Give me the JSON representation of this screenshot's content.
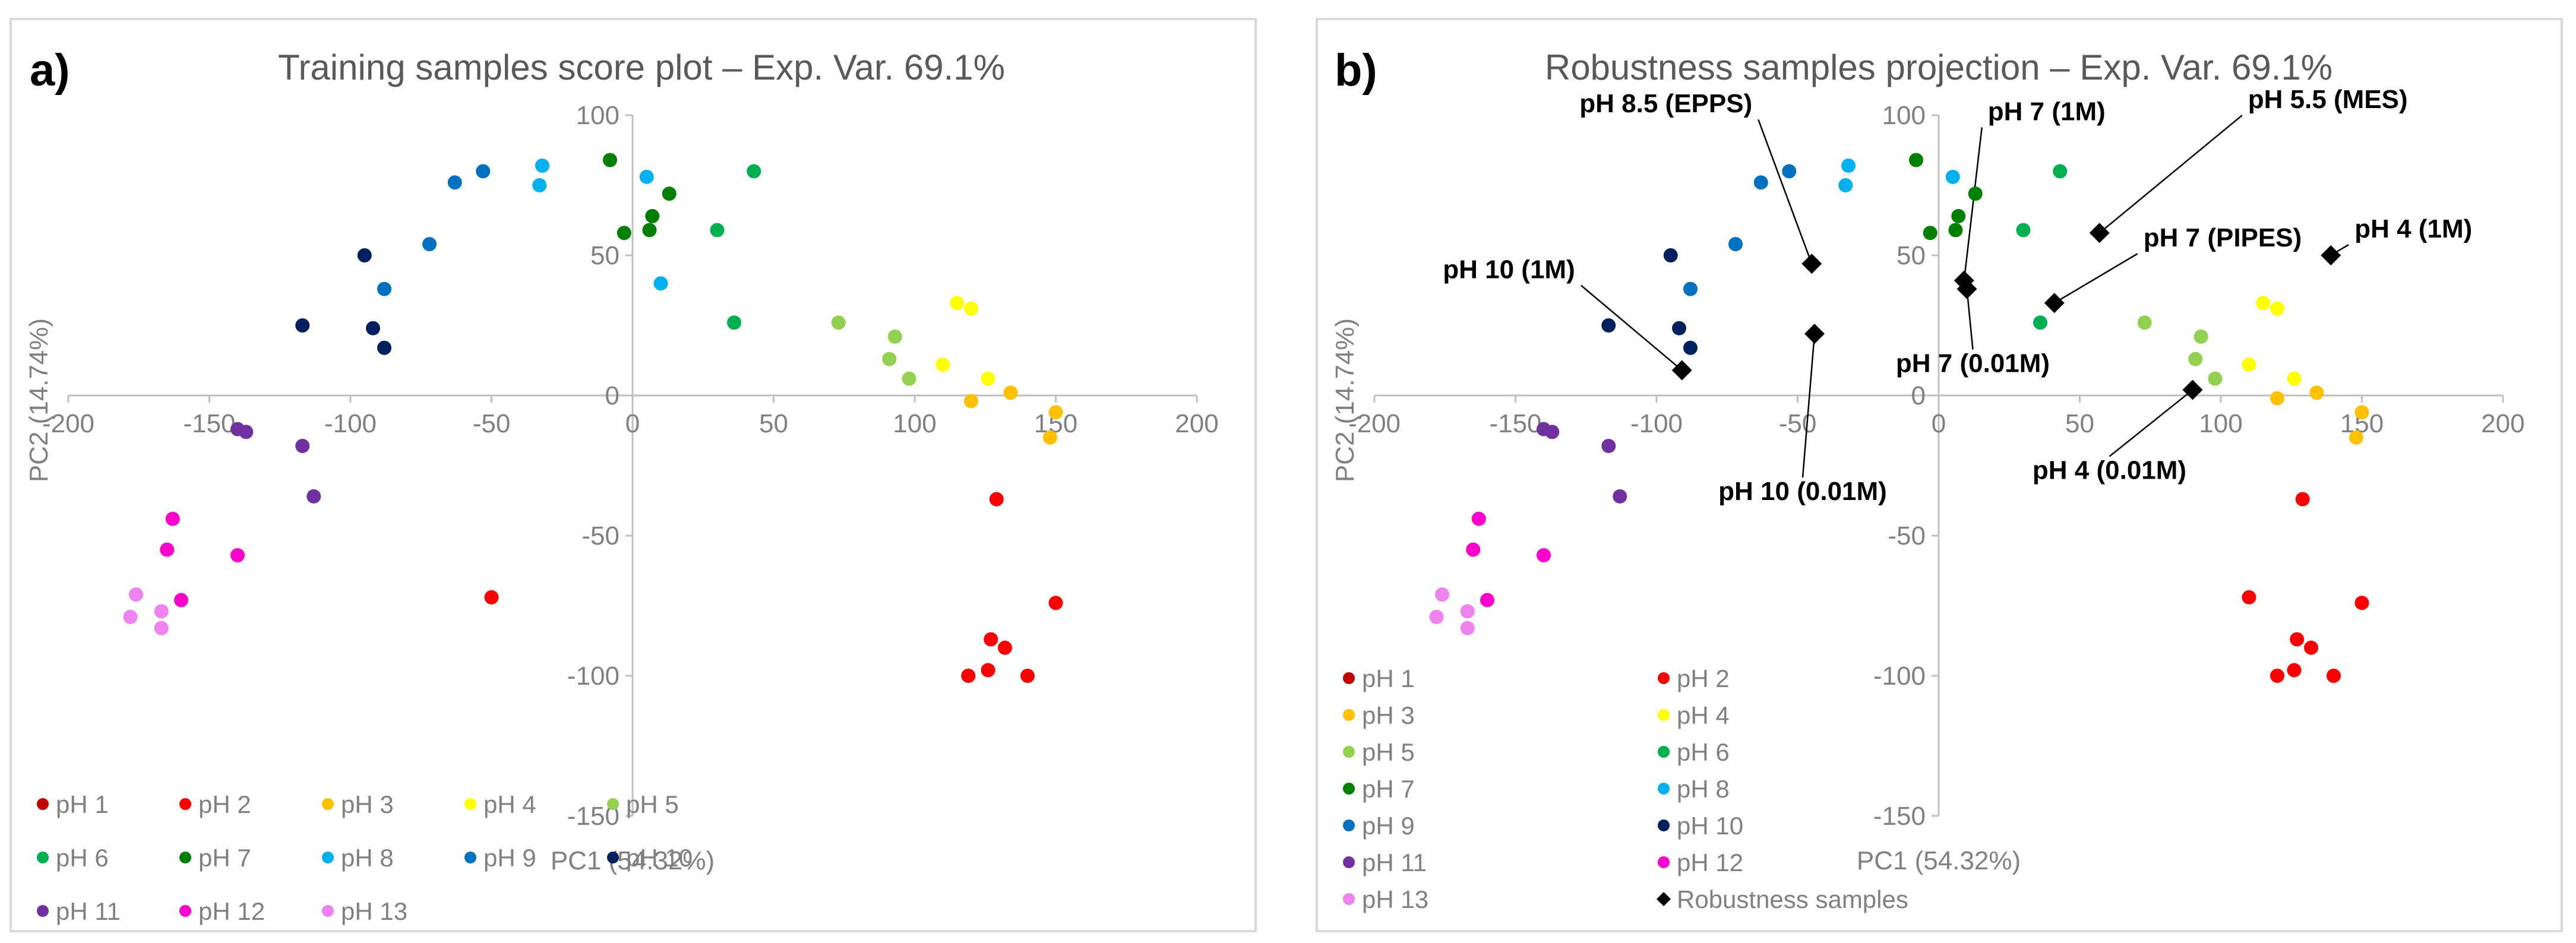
{
  "chart_data": [
    {
      "panel_label": "a)",
      "type": "scatter",
      "title": "Training samples score plot – Exp. Var. 69.1%",
      "xlabel": "PC1 (54.32%)",
      "ylabel": "PC2 (14.74%)",
      "xlim": [
        -200,
        200
      ],
      "ylim": [
        -150,
        100
      ],
      "x_ticks": [
        -200,
        -150,
        -100,
        -50,
        0,
        50,
        100,
        150,
        200
      ],
      "y_ticks": [
        -150,
        -100,
        -50,
        0,
        50,
        100
      ],
      "legend_position": "bottom-left",
      "series": [
        {
          "name": "pH 1",
          "color": "#c00000",
          "points": []
        },
        {
          "name": "pH 2",
          "color": "#ff0000",
          "points": [
            [
              -50,
              -72
            ],
            [
              119,
              -100
            ],
            [
              126,
              -98
            ],
            [
              127,
              -87
            ],
            [
              132,
              -90
            ],
            [
              140,
              -100
            ],
            [
              150,
              -74
            ],
            [
              129,
              -37
            ]
          ]
        },
        {
          "name": "pH 3",
          "color": "#ffc000",
          "points": [
            [
              120,
              -2
            ],
            [
              134,
              1
            ],
            [
              148,
              -15
            ],
            [
              150,
              -6
            ]
          ]
        },
        {
          "name": "pH 4",
          "color": "#ffff00",
          "points": [
            [
              115,
              33
            ],
            [
              120,
              31
            ],
            [
              110,
              11
            ],
            [
              126,
              6
            ]
          ]
        },
        {
          "name": "pH 5",
          "color": "#92d050",
          "points": [
            [
              73,
              26
            ],
            [
              93,
              21
            ],
            [
              91,
              13
            ],
            [
              98,
              6
            ]
          ]
        },
        {
          "name": "pH 6",
          "color": "#00b050",
          "points": [
            [
              43,
              80
            ],
            [
              30,
              59
            ],
            [
              36,
              26
            ]
          ]
        },
        {
          "name": "pH 7",
          "color": "#008000",
          "points": [
            [
              -8,
              84
            ],
            [
              -3,
              58
            ],
            [
              6,
              59
            ],
            [
              7,
              64
            ],
            [
              13,
              72
            ]
          ]
        },
        {
          "name": "pH 8",
          "color": "#00b0f0",
          "points": [
            [
              -32,
              82
            ],
            [
              -33,
              75
            ],
            [
              5,
              78
            ],
            [
              10,
              40
            ]
          ]
        },
        {
          "name": "pH 9",
          "color": "#0070c0",
          "points": [
            [
              -63,
              76
            ],
            [
              -53,
              80
            ],
            [
              -72,
              54
            ],
            [
              -88,
              38
            ]
          ]
        },
        {
          "name": "pH 10",
          "color": "#002060",
          "points": [
            [
              -95,
              50
            ],
            [
              -117,
              25
            ],
            [
              -92,
              24
            ],
            [
              -88,
              17
            ]
          ]
        },
        {
          "name": "pH 11",
          "color": "#7030a0",
          "points": [
            [
              -140,
              -12
            ],
            [
              -137,
              -13
            ],
            [
              -117,
              -18
            ],
            [
              -113,
              -36
            ]
          ]
        },
        {
          "name": "pH 12",
          "color": "#ff00cc",
          "points": [
            [
              -163,
              -44
            ],
            [
              -165,
              -55
            ],
            [
              -160,
              -73
            ],
            [
              -140,
              -57
            ]
          ]
        },
        {
          "name": "pH 13",
          "color": "#ee82ee",
          "points": [
            [
              -176,
              -71
            ],
            [
              -178,
              -79
            ],
            [
              -167,
              -77
            ],
            [
              -167,
              -83
            ]
          ]
        }
      ],
      "legend_rows": [
        [
          "pH 1",
          "pH 2",
          "pH 3",
          "pH 4",
          "pH 5"
        ],
        [
          "pH 6",
          "pH 7",
          "pH 8",
          "pH 9",
          "pH 10"
        ],
        [
          "pH 11",
          "pH 12",
          "pH 13"
        ]
      ]
    },
    {
      "panel_label": "b)",
      "type": "scatter",
      "title": "Robustness samples projection – Exp. Var. 69.1%",
      "xlabel": "PC1 (54.32%)",
      "ylabel": "PC2 (14.74%)",
      "xlim": [
        -200,
        200
      ],
      "ylim": [
        -150,
        100
      ],
      "x_ticks": [
        -200,
        -150,
        -100,
        -50,
        0,
        50,
        100,
        150,
        200
      ],
      "y_ticks": [
        -150,
        -100,
        -50,
        0,
        50,
        100
      ],
      "legend_position": "bottom-left",
      "series": [
        {
          "name": "pH 1",
          "color": "#c00000",
          "points": []
        },
        {
          "name": "pH 2",
          "color": "#ff0000",
          "points": [
            [
              110,
              -72
            ],
            [
              120,
              -100
            ],
            [
              126,
              -98
            ],
            [
              127,
              -87
            ],
            [
              132,
              -90
            ],
            [
              140,
              -100
            ],
            [
              150,
              -74
            ],
            [
              129,
              -37
            ]
          ]
        },
        {
          "name": "pH 3",
          "color": "#ffc000",
          "points": [
            [
              120,
              -1
            ],
            [
              134,
              1
            ],
            [
              148,
              -15
            ],
            [
              150,
              -6
            ]
          ]
        },
        {
          "name": "pH 4",
          "color": "#ffff00",
          "points": [
            [
              115,
              33
            ],
            [
              120,
              31
            ],
            [
              110,
              11
            ],
            [
              126,
              6
            ]
          ]
        },
        {
          "name": "pH 5",
          "color": "#92d050",
          "points": [
            [
              73,
              26
            ],
            [
              93,
              21
            ],
            [
              91,
              13
            ],
            [
              98,
              6
            ]
          ]
        },
        {
          "name": "pH 6",
          "color": "#00b050",
          "points": [
            [
              43,
              80
            ],
            [
              30,
              59
            ],
            [
              36,
              26
            ]
          ]
        },
        {
          "name": "pH 7",
          "color": "#008000",
          "points": [
            [
              -8,
              84
            ],
            [
              -3,
              58
            ],
            [
              6,
              59
            ],
            [
              7,
              64
            ],
            [
              13,
              72
            ]
          ]
        },
        {
          "name": "pH 8",
          "color": "#00b0f0",
          "points": [
            [
              -32,
              82
            ],
            [
              -33,
              75
            ],
            [
              5,
              78
            ]
          ]
        },
        {
          "name": "pH 9",
          "color": "#0070c0",
          "points": [
            [
              -63,
              76
            ],
            [
              -53,
              80
            ],
            [
              -72,
              54
            ],
            [
              -88,
              38
            ]
          ]
        },
        {
          "name": "pH 10",
          "color": "#002060",
          "points": [
            [
              -95,
              50
            ],
            [
              -117,
              25
            ],
            [
              -92,
              24
            ],
            [
              -88,
              17
            ]
          ]
        },
        {
          "name": "pH 11",
          "color": "#7030a0",
          "points": [
            [
              -140,
              -12
            ],
            [
              -137,
              -13
            ],
            [
              -117,
              -18
            ],
            [
              -113,
              -36
            ]
          ]
        },
        {
          "name": "pH 12",
          "color": "#ff00cc",
          "points": [
            [
              -163,
              -44
            ],
            [
              -165,
              -55
            ],
            [
              -160,
              -73
            ],
            [
              -140,
              -57
            ]
          ]
        },
        {
          "name": "pH 13",
          "color": "#ee82ee",
          "points": [
            [
              -176,
              -71
            ],
            [
              -178,
              -79
            ],
            [
              -167,
              -77
            ],
            [
              -167,
              -83
            ]
          ]
        },
        {
          "name": "Robustness samples",
          "color": "#000000",
          "marker": "diamond",
          "points": [
            [
              -45,
              47
            ],
            [
              -44,
              22
            ],
            [
              -91,
              9
            ],
            [
              9,
              41
            ],
            [
              10,
              38
            ],
            [
              57,
              58
            ],
            [
              41,
              33
            ],
            [
              90,
              2
            ],
            [
              139,
              50
            ]
          ]
        }
      ],
      "annotations": [
        {
          "text": "pH 8.5 (EPPS)",
          "point": [
            -45,
            47
          ]
        },
        {
          "text": "pH 10 (1M)",
          "point": [
            -91,
            9
          ]
        },
        {
          "text": "pH 10 (0.01M)",
          "point": [
            -44,
            22
          ]
        },
        {
          "text": "pH 7 (1M)",
          "point": [
            9,
            41
          ]
        },
        {
          "text": "pH 7 (0.01M)",
          "point": [
            10,
            38
          ]
        },
        {
          "text": "pH 5.5 (MES)",
          "point": [
            57,
            58
          ]
        },
        {
          "text": "pH 7 (PIPES)",
          "point": [
            41,
            33
          ]
        },
        {
          "text": "pH 4 (0.01M)",
          "point": [
            90,
            2
          ]
        },
        {
          "text": "pH 4 (1M)",
          "point": [
            139,
            50
          ]
        }
      ],
      "legend_rows": [
        [
          "pH 1",
          "pH 2"
        ],
        [
          "pH 3",
          "pH 4"
        ],
        [
          "pH 5",
          "pH 6"
        ],
        [
          "pH 7",
          "pH 8"
        ],
        [
          "pH 9",
          "pH 10"
        ],
        [
          "pH 11",
          "pH 12"
        ],
        [
          "pH 13",
          "Robustness samples"
        ]
      ]
    }
  ]
}
